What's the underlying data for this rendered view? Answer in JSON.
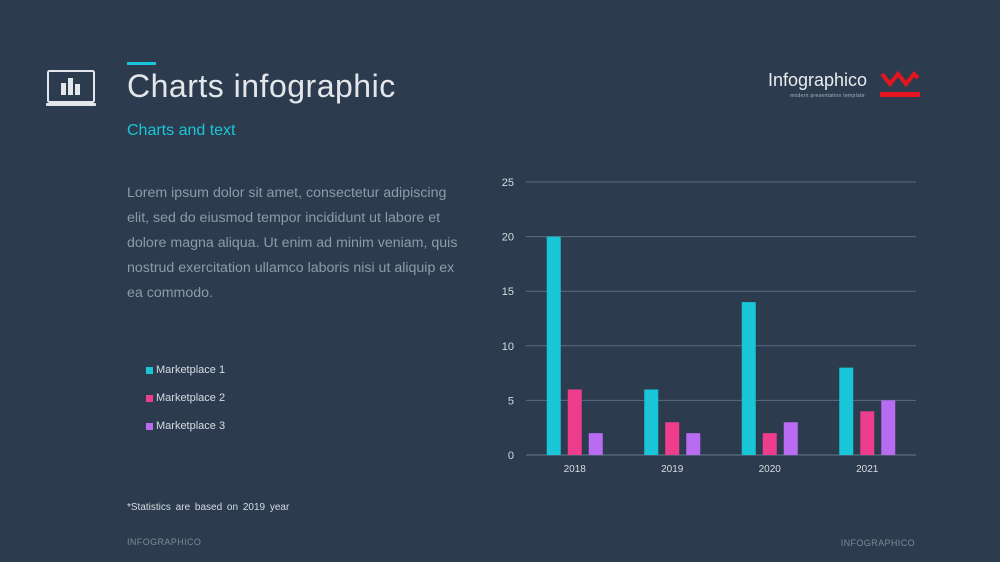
{
  "header": {
    "title": "Charts infographic",
    "subtitle": "Charts and text",
    "accent_color": "#19c6d8"
  },
  "brand": {
    "name": "Infographico",
    "tagline": "modern presentation template",
    "logo_color": "#e3161f"
  },
  "body_text": "Lorem ipsum dolor sit amet, consectetur adipiscing elit, sed do eiusmod tempor incididunt ut labore et dolore magna aliqua. Ut enim ad minim veniam, quis nostrud exercitation ullamco laboris nisi ut aliquip ex ea commodo.",
  "footnote": "*Statistics are based on 2019 year",
  "footer": {
    "left": "INFOGRAPHICO",
    "right": "INFOGRAPHICO"
  },
  "icons": {
    "header": "laptop-chart-icon",
    "brand": "brand-logo-icon"
  },
  "chart_data": {
    "type": "bar",
    "categories": [
      "2018",
      "2019",
      "2020",
      "2021"
    ],
    "series": [
      {
        "name": "Marketplace 1",
        "color": "#19c6d8",
        "values": [
          20,
          6,
          14,
          8
        ]
      },
      {
        "name": "Marketplace 2",
        "color": "#ef3d8e",
        "values": [
          6,
          3,
          2,
          4
        ]
      },
      {
        "name": "Marketplace 3",
        "color": "#b96bf2",
        "values": [
          2,
          2,
          3,
          5
        ]
      }
    ],
    "yticks": [
      0,
      5,
      10,
      15,
      20,
      25
    ],
    "ylim": [
      0,
      25
    ],
    "grid": true,
    "legend": "left"
  }
}
